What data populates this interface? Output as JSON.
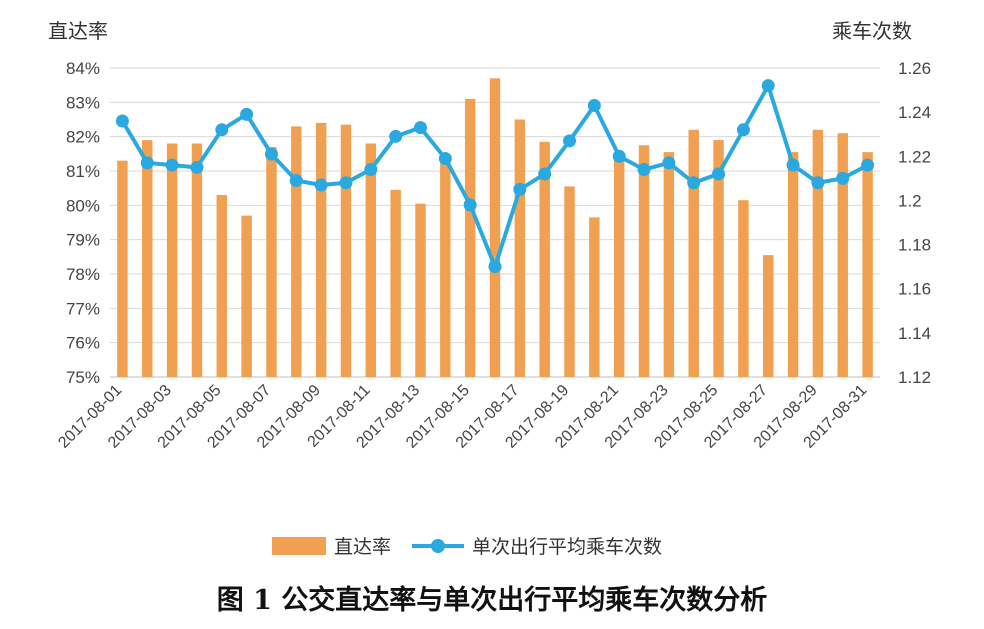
{
  "figure_caption": "图 1 公交直达率与单次出行平均乘车次数分析",
  "colors": {
    "bar": "#f0a050",
    "line": "#2aa8e0",
    "grid": "#d9d9d9",
    "axis": "#bfbfbf"
  },
  "chart_data": {
    "type": "bar",
    "left_axis_title": "直达率",
    "right_axis_title": "乘车次数",
    "y_left": {
      "min": 75,
      "max": 84,
      "ticks": [
        "75%",
        "76%",
        "77%",
        "78%",
        "79%",
        "80%",
        "81%",
        "82%",
        "83%",
        "84%"
      ]
    },
    "y_right": {
      "min": 1.12,
      "max": 1.26,
      "ticks": [
        "1.12",
        "1.14",
        "1.16",
        "1.18",
        "1.2",
        "1.22",
        "1.24",
        "1.26"
      ]
    },
    "categories": [
      "2017-08-01",
      "2017-08-02",
      "2017-08-03",
      "2017-08-04",
      "2017-08-05",
      "2017-08-06",
      "2017-08-07",
      "2017-08-08",
      "2017-08-09",
      "2017-08-10",
      "2017-08-11",
      "2017-08-12",
      "2017-08-13",
      "2017-08-14",
      "2017-08-15",
      "2017-08-16",
      "2017-08-17",
      "2017-08-18",
      "2017-08-19",
      "2017-08-20",
      "2017-08-21",
      "2017-08-22",
      "2017-08-23",
      "2017-08-24",
      "2017-08-25",
      "2017-08-26",
      "2017-08-27",
      "2017-08-28",
      "2017-08-29",
      "2017-08-30",
      "2017-08-31"
    ],
    "x_tick_labels": [
      "2017-08-01",
      "2017-08-03",
      "2017-08-05",
      "2017-08-07",
      "2017-08-09",
      "2017-08-11",
      "2017-08-13",
      "2017-08-15",
      "2017-08-17",
      "2017-08-19",
      "2017-08-21",
      "2017-08-23",
      "2017-08-25",
      "2017-08-27",
      "2017-08-29",
      "2017-08-31"
    ],
    "series": [
      {
        "name": "直达率",
        "kind": "bar",
        "axis": "left",
        "values": [
          81.3,
          81.9,
          81.8,
          81.8,
          80.3,
          79.7,
          81.7,
          82.3,
          82.4,
          82.35,
          81.8,
          80.45,
          80.05,
          81.4,
          83.1,
          83.7,
          82.5,
          81.85,
          80.55,
          79.65,
          81.5,
          81.75,
          81.55,
          82.2,
          81.9,
          80.15,
          78.55,
          81.55,
          82.2,
          82.1,
          81.55
        ]
      },
      {
        "name": "单次出行平均乘车次数",
        "kind": "line",
        "axis": "right",
        "values": [
          1.236,
          1.217,
          1.216,
          1.215,
          1.232,
          1.239,
          1.221,
          1.209,
          1.207,
          1.208,
          1.214,
          1.229,
          1.233,
          1.219,
          1.198,
          1.17,
          1.205,
          1.212,
          1.227,
          1.243,
          1.22,
          1.214,
          1.217,
          1.208,
          1.212,
          1.232,
          1.252,
          1.216,
          1.208,
          1.21,
          1.216
        ]
      }
    ],
    "legend_position": "bottom",
    "grid": true
  }
}
